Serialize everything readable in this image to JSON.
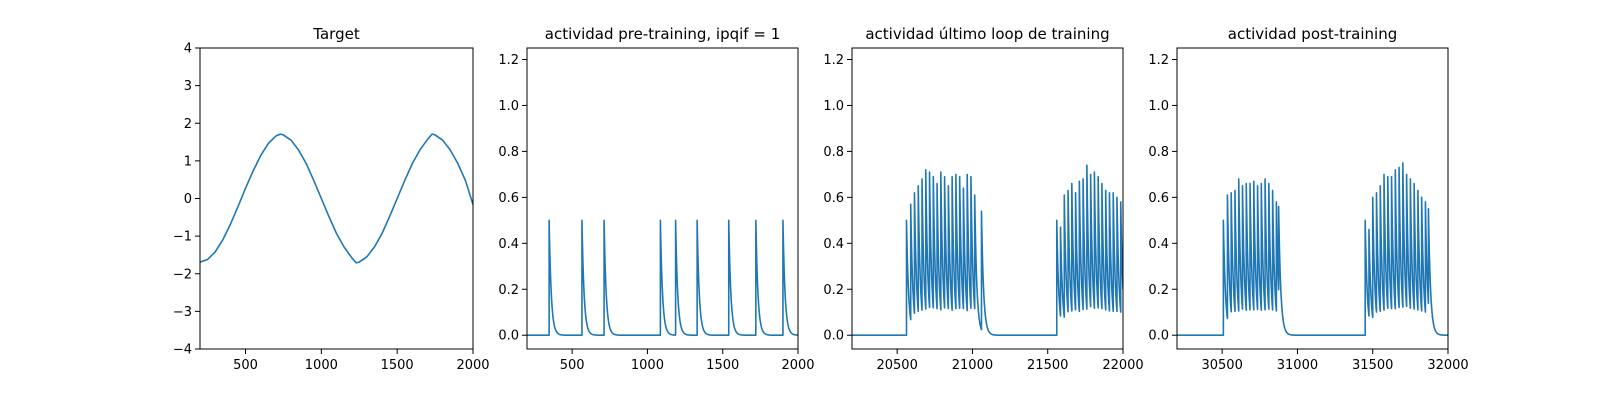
{
  "colors": {
    "line": "#1f77b4",
    "axes": "#000000",
    "background": "#ffffff"
  },
  "chart_data": [
    {
      "type": "line",
      "title": "Target",
      "xlabel": "",
      "ylabel": "",
      "xlim": [
        200,
        2000
      ],
      "ylim": [
        -4,
        4
      ],
      "xticks": [
        500,
        1000,
        1500,
        2000
      ],
      "yticks": [
        -4,
        -3,
        -2,
        -1,
        0,
        1,
        2,
        3,
        4
      ],
      "grid": false,
      "series": [
        {
          "x": [
            200,
            250,
            300,
            350,
            400,
            450,
            500,
            550,
            600,
            650,
            700,
            730,
            750,
            800,
            850,
            900,
            950,
            1000,
            1050,
            1100,
            1150,
            1200,
            1230,
            1250,
            1300,
            1350,
            1400,
            1450,
            1500,
            1550,
            1600,
            1650,
            1700,
            1730,
            1750,
            1800,
            1850,
            1900,
            1950,
            2000
          ],
          "y": [
            -1.69,
            -1.62,
            -1.42,
            -1.1,
            -0.69,
            -0.22,
            0.27,
            0.73,
            1.14,
            1.46,
            1.66,
            1.71,
            1.69,
            1.55,
            1.29,
            0.93,
            0.48,
            0.0,
            -0.48,
            -0.93,
            -1.29,
            -1.57,
            -1.71,
            -1.69,
            -1.55,
            -1.29,
            -0.93,
            -0.48,
            0.0,
            0.48,
            0.93,
            1.29,
            1.57,
            1.71,
            1.69,
            1.55,
            1.29,
            0.93,
            0.48,
            -0.16
          ]
        }
      ]
    },
    {
      "type": "line",
      "title": "actividad pre-training, ipqif = 1",
      "xlabel": "",
      "ylabel": "",
      "xlim": [
        200,
        2000
      ],
      "ylim": [
        -0.06,
        1.25
      ],
      "xticks": [
        500,
        1000,
        1500,
        2000
      ],
      "yticks": [
        0.0,
        0.2,
        0.4,
        0.6,
        0.8,
        1.0,
        1.2
      ],
      "grid": false,
      "pulses": [
        {
          "t": 347,
          "peak": 0.5
        },
        {
          "t": 565,
          "peak": 0.5
        },
        {
          "t": 712,
          "peak": 0.5
        },
        {
          "t": 1086,
          "peak": 0.5
        },
        {
          "t": 1187,
          "peak": 0.5
        },
        {
          "t": 1330,
          "peak": 0.5
        },
        {
          "t": 1540,
          "peak": 0.5
        },
        {
          "t": 1720,
          "peak": 0.5
        },
        {
          "t": 1900,
          "peak": 0.5
        }
      ]
    },
    {
      "type": "line",
      "title": "actividad último loop de training",
      "xlabel": "",
      "ylabel": "",
      "xlim": [
        20200,
        22000
      ],
      "ylim": [
        -0.06,
        1.25
      ],
      "xticks": [
        20500,
        21000,
        21500,
        22000
      ],
      "yticks": [
        0.0,
        0.2,
        0.4,
        0.6,
        0.8,
        1.0,
        1.2
      ],
      "grid": false,
      "pulses": [
        {
          "t": 20562,
          "peak": 0.5
        },
        {
          "t": 20590,
          "peak": 0.57
        },
        {
          "t": 20615,
          "peak": 0.62
        },
        {
          "t": 20640,
          "peak": 0.65
        },
        {
          "t": 20665,
          "peak": 0.68
        },
        {
          "t": 20690,
          "peak": 0.72
        },
        {
          "t": 20715,
          "peak": 0.71
        },
        {
          "t": 20740,
          "peak": 0.69
        },
        {
          "t": 20765,
          "peak": 0.66
        },
        {
          "t": 20790,
          "peak": 0.71
        },
        {
          "t": 20815,
          "peak": 0.69
        },
        {
          "t": 20840,
          "peak": 0.65
        },
        {
          "t": 20865,
          "peak": 0.69
        },
        {
          "t": 20890,
          "peak": 0.7
        },
        {
          "t": 20915,
          "peak": 0.69
        },
        {
          "t": 20940,
          "peak": 0.64
        },
        {
          "t": 20965,
          "peak": 0.7
        },
        {
          "t": 20990,
          "peak": 0.69
        },
        {
          "t": 21015,
          "peak": 0.61
        },
        {
          "t": 21060,
          "peak": 0.54
        },
        {
          "t": 21560,
          "peak": 0.5
        },
        {
          "t": 21585,
          "peak": 0.47
        },
        {
          "t": 21610,
          "peak": 0.61
        },
        {
          "t": 21635,
          "peak": 0.63
        },
        {
          "t": 21660,
          "peak": 0.66
        },
        {
          "t": 21685,
          "peak": 0.62
        },
        {
          "t": 21710,
          "peak": 0.67
        },
        {
          "t": 21735,
          "peak": 0.68
        },
        {
          "t": 21760,
          "peak": 0.74
        },
        {
          "t": 21785,
          "peak": 0.7
        },
        {
          "t": 21810,
          "peak": 0.71
        },
        {
          "t": 21835,
          "peak": 0.69
        },
        {
          "t": 21860,
          "peak": 0.66
        },
        {
          "t": 21885,
          "peak": 0.63
        },
        {
          "t": 21910,
          "peak": 0.62
        },
        {
          "t": 21935,
          "peak": 0.62
        },
        {
          "t": 21960,
          "peak": 0.6
        },
        {
          "t": 21985,
          "peak": 0.58
        }
      ]
    },
    {
      "type": "line",
      "title": "actividad post-training",
      "xlabel": "",
      "ylabel": "",
      "xlim": [
        30200,
        32000
      ],
      "ylim": [
        -0.06,
        1.25
      ],
      "xticks": [
        30500,
        31000,
        31500,
        32000
      ],
      "yticks": [
        0.0,
        0.2,
        0.4,
        0.6,
        0.8,
        1.0,
        1.2
      ],
      "grid": false,
      "pulses": [
        {
          "t": 30508,
          "peak": 0.5
        },
        {
          "t": 30535,
          "peak": 0.61
        },
        {
          "t": 30560,
          "peak": 0.62
        },
        {
          "t": 30585,
          "peak": 0.63
        },
        {
          "t": 30610,
          "peak": 0.68
        },
        {
          "t": 30635,
          "peak": 0.65
        },
        {
          "t": 30660,
          "peak": 0.66
        },
        {
          "t": 30685,
          "peak": 0.66
        },
        {
          "t": 30710,
          "peak": 0.67
        },
        {
          "t": 30735,
          "peak": 0.65
        },
        {
          "t": 30760,
          "peak": 0.66
        },
        {
          "t": 30785,
          "peak": 0.68
        },
        {
          "t": 30810,
          "peak": 0.66
        },
        {
          "t": 30835,
          "peak": 0.63
        },
        {
          "t": 30860,
          "peak": 0.58
        },
        {
          "t": 30875,
          "peak": 0.56
        },
        {
          "t": 31450,
          "peak": 0.5
        },
        {
          "t": 31475,
          "peak": 0.46
        },
        {
          "t": 31500,
          "peak": 0.6
        },
        {
          "t": 31525,
          "peak": 0.62
        },
        {
          "t": 31550,
          "peak": 0.65
        },
        {
          "t": 31575,
          "peak": 0.7
        },
        {
          "t": 31600,
          "peak": 0.69
        },
        {
          "t": 31625,
          "peak": 0.69
        },
        {
          "t": 31650,
          "peak": 0.72
        },
        {
          "t": 31675,
          "peak": 0.73
        },
        {
          "t": 31700,
          "peak": 0.75
        },
        {
          "t": 31725,
          "peak": 0.7
        },
        {
          "t": 31750,
          "peak": 0.68
        },
        {
          "t": 31775,
          "peak": 0.66
        },
        {
          "t": 31800,
          "peak": 0.63
        },
        {
          "t": 31825,
          "peak": 0.6
        },
        {
          "t": 31850,
          "peak": 0.58
        },
        {
          "t": 31870,
          "peak": 0.55
        }
      ]
    }
  ]
}
